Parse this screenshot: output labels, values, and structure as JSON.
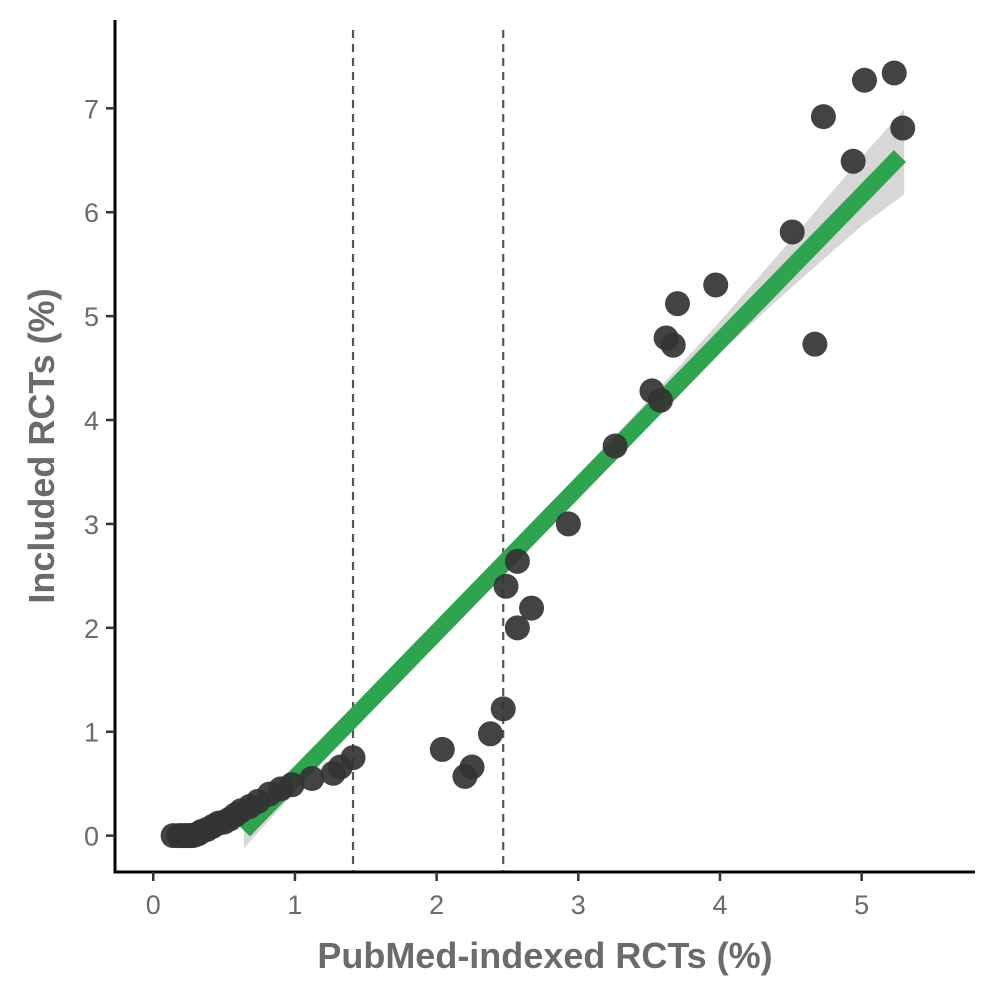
{
  "chart_data": {
    "type": "scatter",
    "title": "",
    "xlabel": "PubMed-indexed RCTs (%)",
    "ylabel": "Included RCTs (%)",
    "xlim": [
      -0.27,
      5.8
    ],
    "ylim": [
      -0.35,
      7.85
    ],
    "x_ticks": [
      0,
      1,
      2,
      3,
      4,
      5
    ],
    "y_ticks": [
      0,
      1,
      2,
      3,
      4,
      5,
      6,
      7
    ],
    "grid": false,
    "legend": "none",
    "reference_lines_x": [
      1.41,
      2.47
    ],
    "colors": {
      "points": "#333333",
      "fit_line": "#2ea44f",
      "confidence_band": "#d0d0d0",
      "reference_lines": "#555555"
    },
    "fit_line": {
      "x": [
        0.64,
        5.27
      ],
      "y": [
        0.05,
        6.54
      ]
    },
    "confidence_band": {
      "x": [
        0.64,
        1.0,
        1.5,
        2.0,
        2.5,
        3.0,
        3.5,
        4.0,
        4.5,
        5.0,
        5.3
      ],
      "lower": [
        -0.12,
        0.42,
        1.17,
        1.91,
        2.63,
        3.33,
        4.0,
        4.65,
        5.27,
        5.87,
        6.17
      ],
      "upper": [
        0.22,
        0.68,
        1.37,
        2.07,
        2.77,
        3.47,
        4.2,
        4.95,
        5.73,
        6.53,
        6.99
      ]
    },
    "points": [
      {
        "x": 0.14,
        "y": 0.0
      },
      {
        "x": 0.18,
        "y": 0.0
      },
      {
        "x": 0.2,
        "y": 0.0
      },
      {
        "x": 0.22,
        "y": 0.0
      },
      {
        "x": 0.24,
        "y": 0.0
      },
      {
        "x": 0.26,
        "y": 0.0
      },
      {
        "x": 0.28,
        "y": 0.0
      },
      {
        "x": 0.3,
        "y": 0.01
      },
      {
        "x": 0.32,
        "y": 0.02
      },
      {
        "x": 0.34,
        "y": 0.04
      },
      {
        "x": 0.38,
        "y": 0.06
      },
      {
        "x": 0.42,
        "y": 0.09
      },
      {
        "x": 0.46,
        "y": 0.12
      },
      {
        "x": 0.5,
        "y": 0.13
      },
      {
        "x": 0.54,
        "y": 0.16
      },
      {
        "x": 0.58,
        "y": 0.2
      },
      {
        "x": 0.62,
        "y": 0.24
      },
      {
        "x": 0.68,
        "y": 0.28
      },
      {
        "x": 0.74,
        "y": 0.33
      },
      {
        "x": 0.82,
        "y": 0.4
      },
      {
        "x": 0.9,
        "y": 0.45
      },
      {
        "x": 0.98,
        "y": 0.49
      },
      {
        "x": 1.12,
        "y": 0.55
      },
      {
        "x": 1.27,
        "y": 0.6
      },
      {
        "x": 1.32,
        "y": 0.66
      },
      {
        "x": 1.41,
        "y": 0.75
      },
      {
        "x": 2.04,
        "y": 0.83
      },
      {
        "x": 2.2,
        "y": 0.57
      },
      {
        "x": 2.25,
        "y": 0.66
      },
      {
        "x": 2.38,
        "y": 0.98
      },
      {
        "x": 2.47,
        "y": 1.22
      },
      {
        "x": 2.49,
        "y": 2.4
      },
      {
        "x": 2.57,
        "y": 2.64
      },
      {
        "x": 2.57,
        "y": 2.0
      },
      {
        "x": 2.67,
        "y": 2.19
      },
      {
        "x": 2.93,
        "y": 3.0
      },
      {
        "x": 3.26,
        "y": 3.75
      },
      {
        "x": 3.52,
        "y": 4.28
      },
      {
        "x": 3.58,
        "y": 4.19
      },
      {
        "x": 3.62,
        "y": 4.79
      },
      {
        "x": 3.67,
        "y": 4.72
      },
      {
        "x": 3.7,
        "y": 5.12
      },
      {
        "x": 3.97,
        "y": 5.3
      },
      {
        "x": 4.51,
        "y": 5.81
      },
      {
        "x": 4.67,
        "y": 4.73
      },
      {
        "x": 4.73,
        "y": 6.92
      },
      {
        "x": 4.94,
        "y": 6.49
      },
      {
        "x": 5.02,
        "y": 7.27
      },
      {
        "x": 5.23,
        "y": 7.34
      },
      {
        "x": 5.29,
        "y": 6.81
      }
    ]
  }
}
